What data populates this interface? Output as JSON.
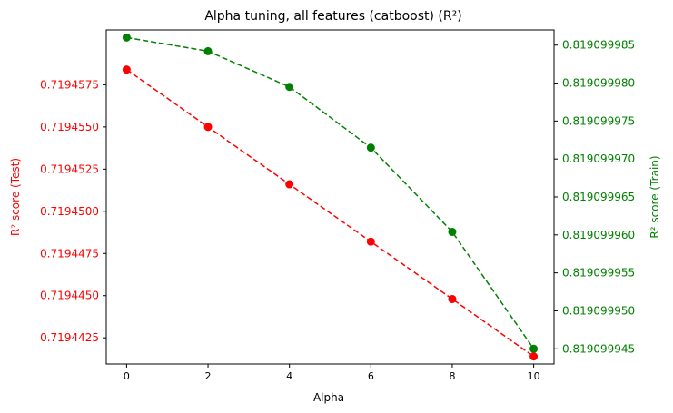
{
  "chart_data": {
    "type": "line",
    "title": "Alpha tuning, all features (catboost) (R²)",
    "xlabel": "Alpha",
    "x": [
      0,
      2,
      4,
      6,
      8,
      10
    ],
    "xticks": [
      "0",
      "2",
      "4",
      "6",
      "8",
      "10"
    ],
    "xlim": [
      -0.5,
      10.5
    ],
    "left_axis": {
      "label": "R² score (Test)",
      "color": "#ff0000",
      "ylim": [
        0.71944095,
        0.71946075
      ],
      "ticks": [
        0.7194425,
        0.719445,
        0.7194475,
        0.71945,
        0.7194525,
        0.719455,
        0.7194575
      ],
      "tick_labels": [
        "0.7194425",
        "0.7194450",
        "0.7194475",
        "0.7194500",
        "0.7194525",
        "0.7194550",
        "0.7194575"
      ]
    },
    "right_axis": {
      "label": "R² score (Train)",
      "color": "#008000",
      "ylim": [
        0.819099943,
        0.819099987
      ],
      "ticks": [
        0.819099945,
        0.81909995,
        0.819099955,
        0.81909996,
        0.819099965,
        0.81909997,
        0.819099975,
        0.81909998,
        0.819099985
      ],
      "tick_labels": [
        "0.819099945",
        "0.819099950",
        "0.819099955",
        "0.819099960",
        "0.819099965",
        "0.819099970",
        "0.819099975",
        "0.819099980",
        "0.819099985"
      ]
    },
    "series": [
      {
        "axis": "left",
        "color": "#ff0000",
        "style": "dashed",
        "marker": "circle",
        "values": [
          0.7194584,
          0.719455,
          0.7194516,
          0.7194482,
          0.7194448,
          0.7194414
        ]
      },
      {
        "axis": "right",
        "color": "#008000",
        "style": "dashed",
        "marker": "circle",
        "values": [
          0.819099986,
          0.8190999842,
          0.8190999795,
          0.8190999715,
          0.8190999604,
          0.819099945
        ]
      }
    ],
    "grid": false,
    "legend": "none"
  }
}
